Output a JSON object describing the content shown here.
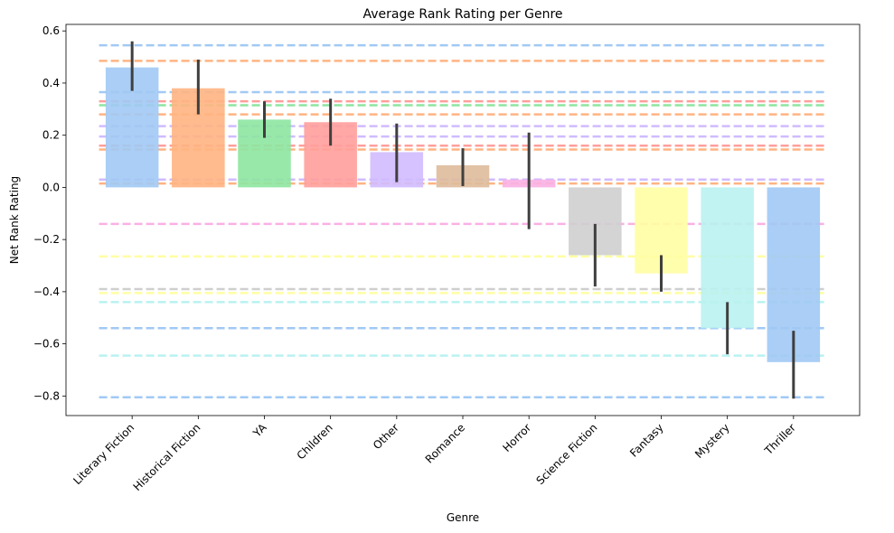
{
  "chart_data": {
    "type": "bar",
    "title": "Average Rank Rating per Genre",
    "xlabel": "Genre",
    "ylabel": "Net Rank Rating",
    "ylim": [
      -0.875,
      0.625
    ],
    "yticks": [
      0.6,
      0.4,
      0.2,
      0.0,
      -0.2,
      -0.4,
      -0.6,
      -0.8
    ],
    "ytick_labels": [
      "0.6",
      "0.4",
      "0.2",
      "0.0",
      "−0.2",
      "−0.4",
      "−0.6",
      "−0.8"
    ],
    "grid": false,
    "categories": [
      "Literary Fiction",
      "Historical Fiction",
      "YA",
      "Children",
      "Other",
      "Romance",
      "Horror",
      "Science Fiction",
      "Fantasy",
      "Mystery",
      "Thriller"
    ],
    "values": [
      0.46,
      0.38,
      0.26,
      0.25,
      0.135,
      0.085,
      0.03,
      -0.26,
      -0.33,
      -0.54,
      -0.67
    ],
    "error_low": [
      0.37,
      0.28,
      0.19,
      0.16,
      0.02,
      0.005,
      -0.16,
      -0.38,
      -0.4,
      -0.64,
      -0.81
    ],
    "error_high": [
      0.56,
      0.49,
      0.33,
      0.34,
      0.245,
      0.15,
      0.21,
      -0.14,
      -0.26,
      -0.44,
      -0.55
    ],
    "colors": [
      "#a1c9f4",
      "#ffb482",
      "#8de5a1",
      "#ff9f9b",
      "#d0bbff",
      "#debb9b",
      "#fab0e4",
      "#cfcfcf",
      "#fffea3",
      "#b9f2f0",
      "#a1c9f4"
    ],
    "reference_lines": [
      {
        "y": 0.545,
        "color": "#a1c9f4"
      },
      {
        "y": 0.485,
        "color": "#ffb482"
      },
      {
        "y": 0.365,
        "color": "#a1c9f4"
      },
      {
        "y": 0.33,
        "color": "#ff9f9b"
      },
      {
        "y": 0.315,
        "color": "#8de5a1"
      },
      {
        "y": 0.28,
        "color": "#ffb482"
      },
      {
        "y": 0.235,
        "color": "#d0bbff"
      },
      {
        "y": 0.195,
        "color": "#d0bbff"
      },
      {
        "y": 0.16,
        "color": "#ff9f9b"
      },
      {
        "y": 0.145,
        "color": "#ffb482"
      },
      {
        "y": 0.03,
        "color": "#d0bbff"
      },
      {
        "y": 0.015,
        "color": "#ffb482"
      },
      {
        "y": -0.14,
        "color": "#fab0e4"
      },
      {
        "y": -0.265,
        "color": "#fffea3"
      },
      {
        "y": -0.39,
        "color": "#cfcfcf"
      },
      {
        "y": -0.405,
        "color": "#fffea3"
      },
      {
        "y": -0.44,
        "color": "#b9f2f0"
      },
      {
        "y": -0.54,
        "color": "#a1c9f4"
      },
      {
        "y": -0.645,
        "color": "#b9f2f0"
      },
      {
        "y": -0.805,
        "color": "#a1c9f4"
      }
    ]
  }
}
